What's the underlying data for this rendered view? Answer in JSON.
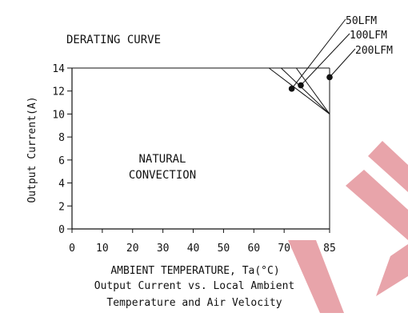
{
  "header": {
    "title": "DERATING CURVE"
  },
  "region_label": [
    "NATURAL",
    "CONVECTION"
  ],
  "caption": [
    "Output Current vs. Local Ambient",
    "Temperature and Air Velocity"
  ],
  "colors": {
    "axis": "#111111",
    "watermark": "#e8a4aa",
    "background": "#ffffff"
  },
  "chart_data": {
    "type": "line",
    "title": "DERATING CURVE",
    "xlabel": "AMBIENT TEMPERATURE, Ta(°C)",
    "ylabel": "Output Current(A)",
    "xlim": [
      0,
      85
    ],
    "ylim": [
      0,
      14
    ],
    "xticks": [
      0,
      10,
      20,
      30,
      40,
      50,
      60,
      70,
      85
    ],
    "yticks": [
      0,
      2,
      4,
      6,
      8,
      10,
      12,
      14
    ],
    "grid": false,
    "series": [
      {
        "name": "50LFM",
        "x": [
          0,
          65,
          85
        ],
        "y": [
          14,
          14,
          10
        ]
      },
      {
        "name": "100LFM",
        "x": [
          0,
          69,
          85
        ],
        "y": [
          14,
          14,
          10
        ]
      },
      {
        "name": "200LFM",
        "x": [
          0,
          74,
          85
        ],
        "y": [
          14,
          14,
          10
        ]
      }
    ],
    "markers": [
      {
        "series": "50LFM",
        "x": 72.5,
        "y": 12.2
      },
      {
        "series": "100LFM",
        "x": 75.5,
        "y": 12.5
      },
      {
        "series": "200LFM",
        "x": 85,
        "y": 13.2
      }
    ],
    "annotations": [
      "NATURAL CONVECTION"
    ]
  }
}
